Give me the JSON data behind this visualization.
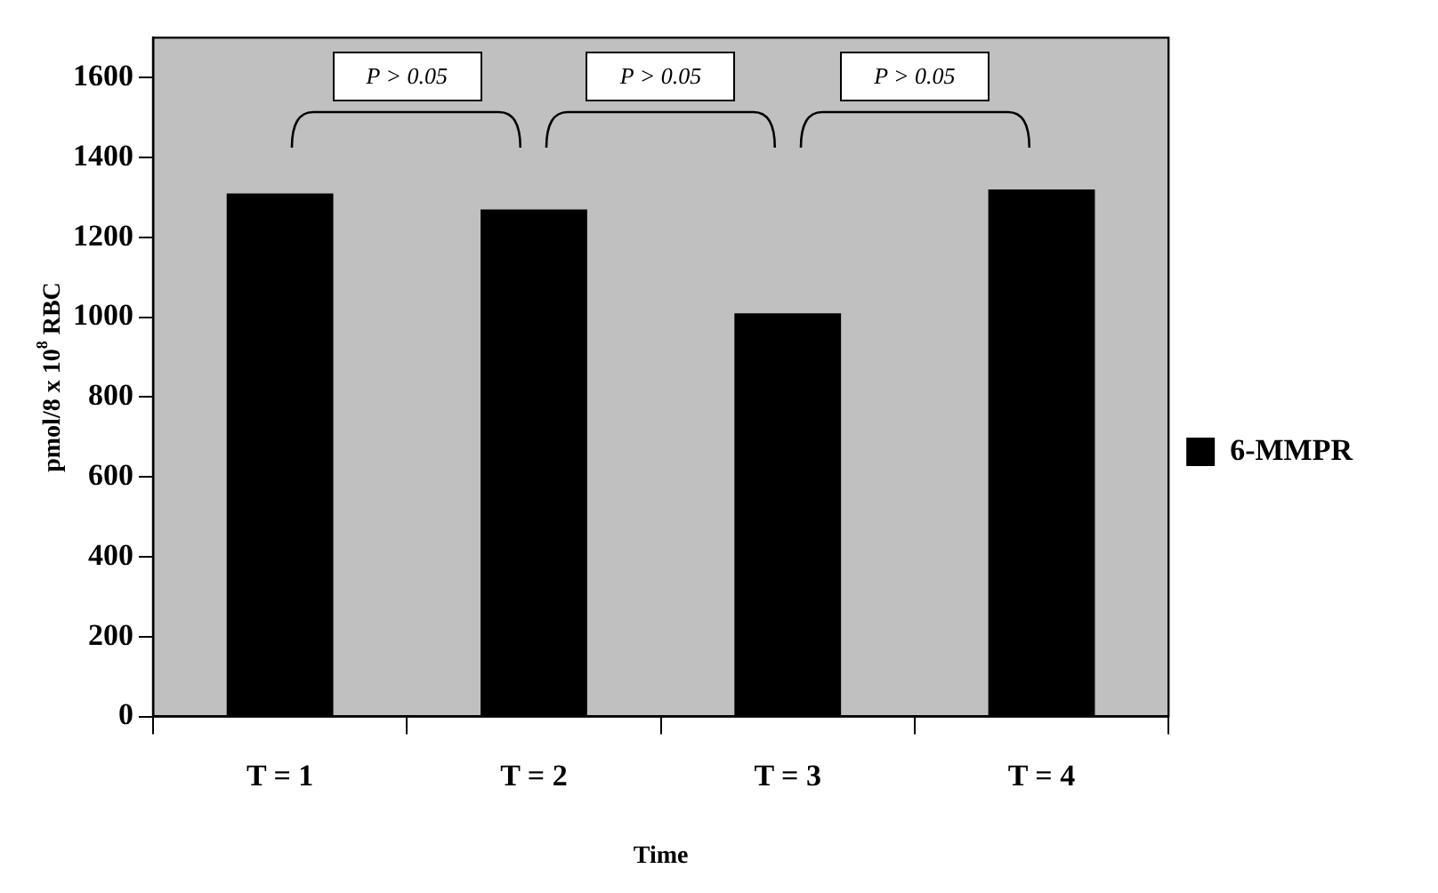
{
  "chart_data": {
    "type": "bar",
    "xlabel": "Time",
    "ylabel": "pmol/8 x 10$^{8}$ RBC",
    "categories": [
      "T = 1",
      "T = 2",
      "T = 3",
      "T = 4"
    ],
    "series": [
      {
        "name": "6-MMPR",
        "color": "#000000",
        "values": [
          1310,
          1270,
          1010,
          1320
        ]
      }
    ],
    "ylim": [
      0,
      1700
    ],
    "yticks": [
      0,
      200,
      400,
      600,
      800,
      1000,
      1200,
      1400,
      1600
    ],
    "grid": false,
    "legend": "right",
    "annotations": [
      "P > 0.05",
      "P > 0.05",
      "P > 0.05"
    ]
  }
}
